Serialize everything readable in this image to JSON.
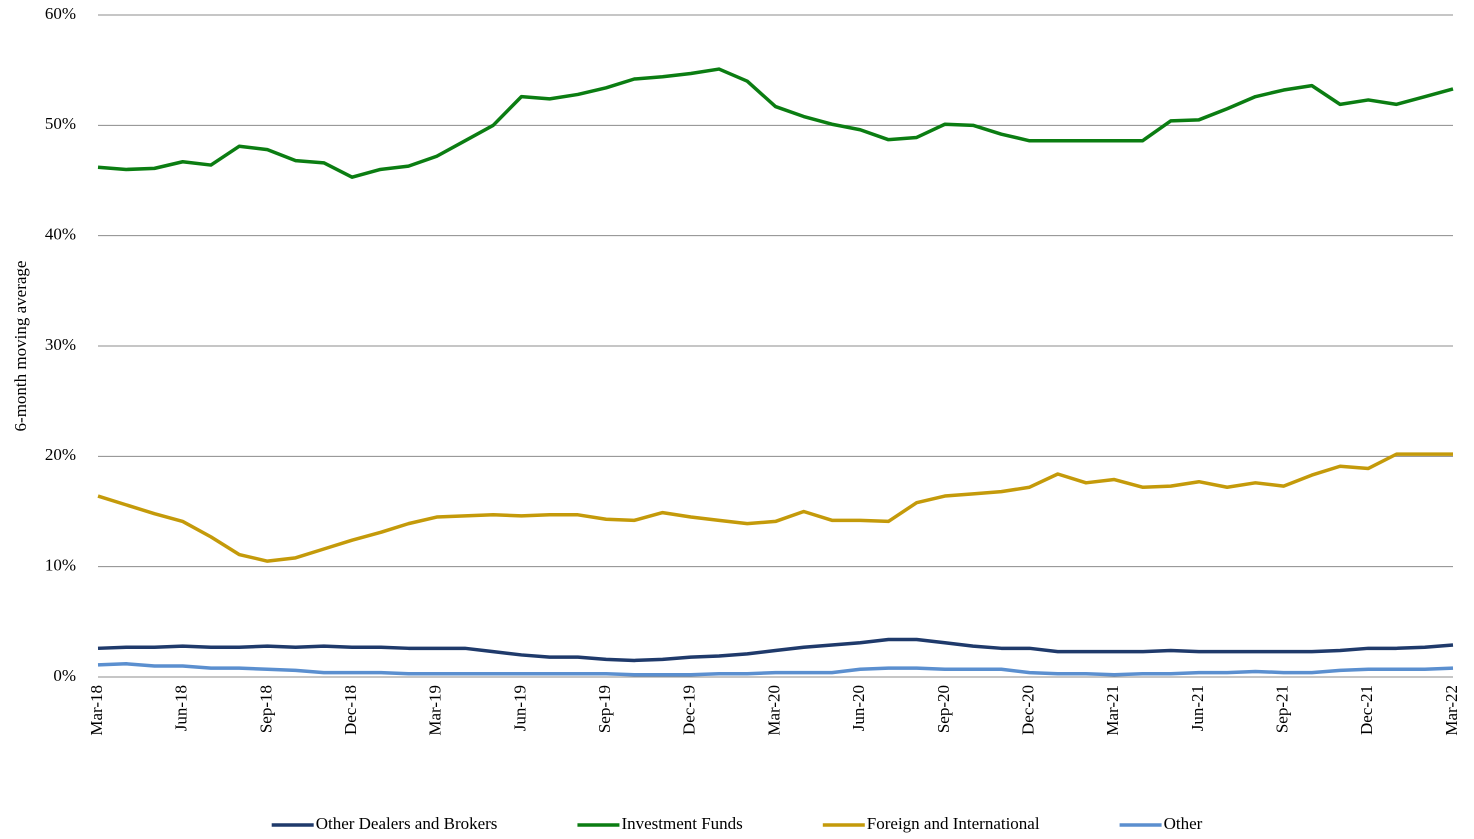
{
  "chart_data": {
    "type": "line",
    "ylabel": "6-month moving average",
    "categories": [
      "Mar-18",
      null,
      null,
      "Jun-18",
      null,
      null,
      "Sep-18",
      null,
      null,
      "Dec-18",
      null,
      null,
      "Mar-19",
      null,
      null,
      "Jun-19",
      null,
      null,
      "Sep-19",
      null,
      null,
      "Dec-19",
      null,
      null,
      "Mar-20",
      null,
      null,
      "Jun-20",
      null,
      null,
      "Sep-20",
      null,
      null,
      "Dec-20",
      null,
      null,
      "Mar-21",
      null,
      null,
      "Jun-21",
      null,
      null,
      "Sep-21",
      null,
      null,
      "Dec-21",
      null,
      null,
      "Mar-22"
    ],
    "series": [
      {
        "name": "Other Dealers and Brokers",
        "color": "#1f3a6b",
        "values": [
          2.6,
          2.7,
          2.7,
          2.8,
          2.7,
          2.7,
          2.8,
          2.7,
          2.8,
          2.7,
          2.7,
          2.6,
          2.6,
          2.6,
          2.3,
          2.0,
          1.8,
          1.8,
          1.6,
          1.5,
          1.6,
          1.8,
          1.9,
          2.1,
          2.4,
          2.7,
          2.9,
          3.1,
          3.4,
          3.4,
          3.1,
          2.8,
          2.6,
          2.6,
          2.3,
          2.3,
          2.3,
          2.3,
          2.4,
          2.3,
          2.3,
          2.3,
          2.3,
          2.3,
          2.4,
          2.6,
          2.6,
          2.7,
          2.9
        ]
      },
      {
        "name": "Investment Funds",
        "color": "#0b7d12",
        "values": [
          46.2,
          46.0,
          46.1,
          46.7,
          46.4,
          48.1,
          47.8,
          46.8,
          46.6,
          45.3,
          46.0,
          46.3,
          47.2,
          48.6,
          50.0,
          52.6,
          52.4,
          52.8,
          53.4,
          54.2,
          54.4,
          54.7,
          55.1,
          54.0,
          51.7,
          50.8,
          50.1,
          49.6,
          48.7,
          48.9,
          50.1,
          50.0,
          49.2,
          48.6,
          48.6,
          48.6,
          48.6,
          48.6,
          50.4,
          50.5,
          51.5,
          52.6,
          53.2,
          53.6,
          51.9,
          52.3,
          51.9,
          52.6,
          53.3
        ]
      },
      {
        "name": "Foreign and International",
        "color": "#c49a0a",
        "values": [
          16.4,
          15.6,
          14.8,
          14.1,
          12.7,
          11.1,
          10.5,
          10.8,
          11.6,
          12.4,
          13.1,
          13.9,
          14.5,
          14.6,
          14.7,
          14.6,
          14.7,
          14.7,
          14.3,
          14.2,
          14.9,
          14.5,
          14.2,
          13.9,
          14.1,
          15.0,
          14.2,
          14.2,
          14.1,
          15.8,
          16.4,
          16.6,
          16.8,
          17.2,
          18.4,
          17.6,
          17.9,
          17.2,
          17.3,
          17.7,
          17.2,
          17.6,
          17.3,
          18.3,
          19.1,
          18.9,
          20.2,
          20.2,
          20.2
        ]
      },
      {
        "name": "Other",
        "color": "#5b8fcf",
        "values": [
          1.1,
          1.2,
          1.0,
          1.0,
          0.8,
          0.8,
          0.7,
          0.6,
          0.4,
          0.4,
          0.4,
          0.3,
          0.3,
          0.3,
          0.3,
          0.3,
          0.3,
          0.3,
          0.3,
          0.2,
          0.2,
          0.2,
          0.3,
          0.3,
          0.4,
          0.4,
          0.4,
          0.7,
          0.8,
          0.8,
          0.7,
          0.7,
          0.7,
          0.4,
          0.3,
          0.3,
          0.2,
          0.3,
          0.3,
          0.4,
          0.4,
          0.5,
          0.4,
          0.4,
          0.6,
          0.7,
          0.7,
          0.7,
          0.8
        ]
      }
    ],
    "ylim": [
      0,
      60
    ],
    "yticks": [
      {
        "value": 0,
        "label": "0%"
      },
      {
        "value": 10,
        "label": "10%"
      },
      {
        "value": 20,
        "label": "20%"
      },
      {
        "value": 30,
        "label": "30%"
      },
      {
        "value": 40,
        "label": "40%"
      },
      {
        "value": 50,
        "label": "50%"
      },
      {
        "value": 60,
        "label": "60%"
      }
    ],
    "grid": true,
    "legend": "bottom"
  }
}
